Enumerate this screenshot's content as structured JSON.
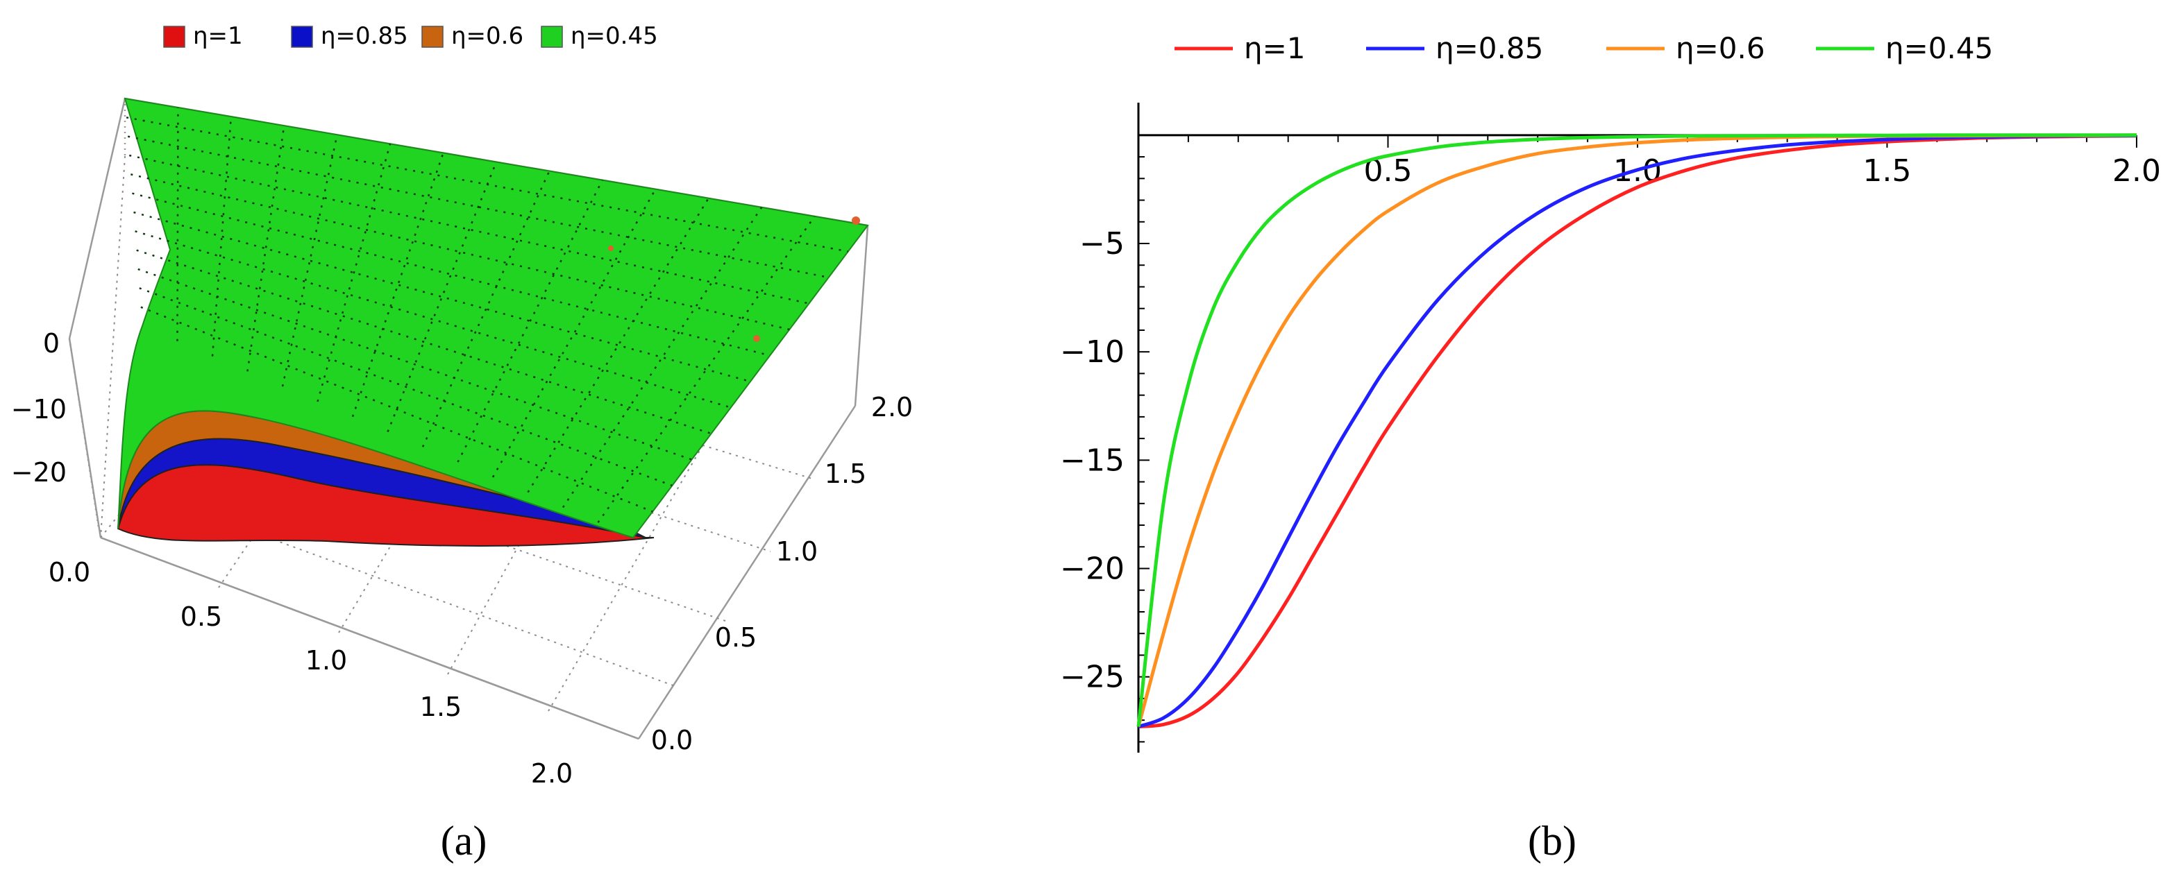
{
  "chart_data": [
    {
      "type": "surface3d",
      "panel_label": "(a)",
      "legend_position": "top",
      "legend": [
        {
          "label": "η=1",
          "color": "#e01010"
        },
        {
          "label": "η=0.85",
          "color": "#0a10c8"
        },
        {
          "label": "η=0.6",
          "color": "#c86410"
        },
        {
          "label": "η=0.45",
          "color": "#20d020"
        }
      ],
      "z_ticks": [
        "0",
        "−10",
        "−20"
      ],
      "x_ticks": [
        "0.0",
        "0.5",
        "1.0",
        "1.5",
        "2.0"
      ],
      "y_ticks": [
        "0.0",
        "0.5",
        "1.0",
        "1.5",
        "2.0"
      ],
      "xlim": [
        0,
        2
      ],
      "ylim": [
        0,
        2
      ],
      "zlim": [
        -27.5,
        0
      ],
      "box": true
    },
    {
      "type": "line",
      "panel_label": "(b)",
      "legend_position": "top",
      "xlim": [
        0,
        2
      ],
      "ylim": [
        -28.5,
        1.5
      ],
      "x_ticks": [
        "0.5",
        "1.0",
        "1.5",
        "2.0"
      ],
      "y_ticks": [
        "−5",
        "−10",
        "−15",
        "−20",
        "−25"
      ],
      "x": [
        0,
        0.05,
        0.1,
        0.15,
        0.2,
        0.25,
        0.3,
        0.35,
        0.4,
        0.45,
        0.5,
        0.6,
        0.7,
        0.8,
        0.9,
        1.0,
        1.1,
        1.2,
        1.3,
        1.4,
        1.5,
        1.6,
        1.7,
        1.8,
        1.9,
        2.0
      ],
      "series": [
        {
          "name": "η=1",
          "color": "#ff2020",
          "values": [
            -27.3,
            -27.2,
            -26.8,
            -26.0,
            -24.8,
            -23.2,
            -21.4,
            -19.4,
            -17.4,
            -15.4,
            -13.5,
            -10.2,
            -7.4,
            -5.2,
            -3.6,
            -2.4,
            -1.6,
            -1.05,
            -0.7,
            -0.45,
            -0.3,
            -0.2,
            -0.12,
            -0.08,
            -0.05,
            -0.03
          ]
        },
        {
          "name": "η=0.85",
          "color": "#2020ff",
          "values": [
            -27.3,
            -26.9,
            -26.0,
            -24.6,
            -22.8,
            -20.8,
            -18.6,
            -16.4,
            -14.3,
            -12.4,
            -10.6,
            -7.6,
            -5.3,
            -3.6,
            -2.4,
            -1.6,
            -1.05,
            -0.7,
            -0.45,
            -0.3,
            -0.2,
            -0.12,
            -0.08,
            -0.05,
            -0.03,
            -0.02
          ]
        },
        {
          "name": "η=0.6",
          "color": "#ff9020",
          "values": [
            -27.3,
            -23.0,
            -19.0,
            -15.6,
            -12.8,
            -10.4,
            -8.4,
            -6.8,
            -5.5,
            -4.4,
            -3.5,
            -2.2,
            -1.4,
            -0.85,
            -0.55,
            -0.35,
            -0.22,
            -0.14,
            -0.09,
            -0.06,
            -0.04,
            -0.03,
            -0.02,
            -0.01,
            -0.01,
            0
          ]
        },
        {
          "name": "η=0.45",
          "color": "#20e020",
          "values": [
            -27.3,
            -17.0,
            -11.5,
            -8.0,
            -5.8,
            -4.2,
            -3.1,
            -2.3,
            -1.7,
            -1.25,
            -0.95,
            -0.55,
            -0.32,
            -0.19,
            -0.11,
            -0.07,
            -0.04,
            -0.03,
            -0.02,
            -0.01,
            -0.01,
            0,
            0,
            0,
            0,
            0
          ]
        }
      ]
    }
  ]
}
